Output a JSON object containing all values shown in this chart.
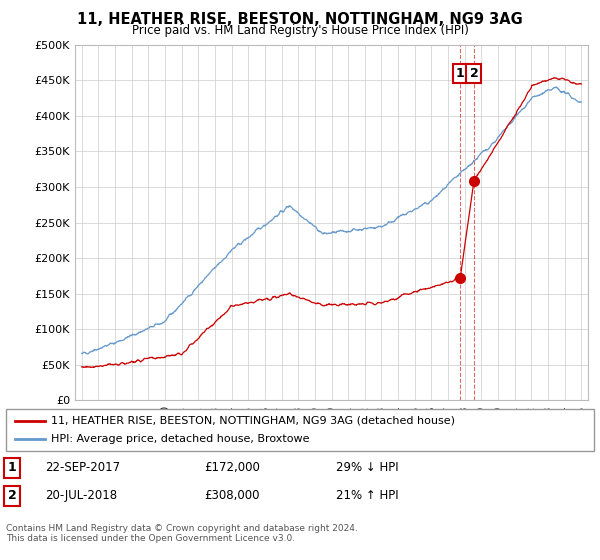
{
  "title": "11, HEATHER RISE, BEESTON, NOTTINGHAM, NG9 3AG",
  "subtitle": "Price paid vs. HM Land Registry's House Price Index (HPI)",
  "legend_line1": "11, HEATHER RISE, BEESTON, NOTTINGHAM, NG9 3AG (detached house)",
  "legend_line2": "HPI: Average price, detached house, Broxtowe",
  "annotation1_label": "1",
  "annotation1_date": "22-SEP-2017",
  "annotation1_price": "£172,000",
  "annotation1_hpi": "29% ↓ HPI",
  "annotation2_label": "2",
  "annotation2_date": "20-JUL-2018",
  "annotation2_price": "£308,000",
  "annotation2_hpi": "21% ↑ HPI",
  "footer": "Contains HM Land Registry data © Crown copyright and database right 2024.\nThis data is licensed under the Open Government Licence v3.0.",
  "sale1_x": 2017.73,
  "sale1_y": 172000,
  "sale2_x": 2018.55,
  "sale2_y": 308000,
  "red_color": "#cc0000",
  "blue_color": "#6699cc",
  "ylim_max": 500000,
  "xlim_min": 1994.6,
  "xlim_max": 2025.4,
  "yticks": [
    0,
    50000,
    100000,
    150000,
    200000,
    250000,
    300000,
    350000,
    400000,
    450000,
    500000
  ]
}
